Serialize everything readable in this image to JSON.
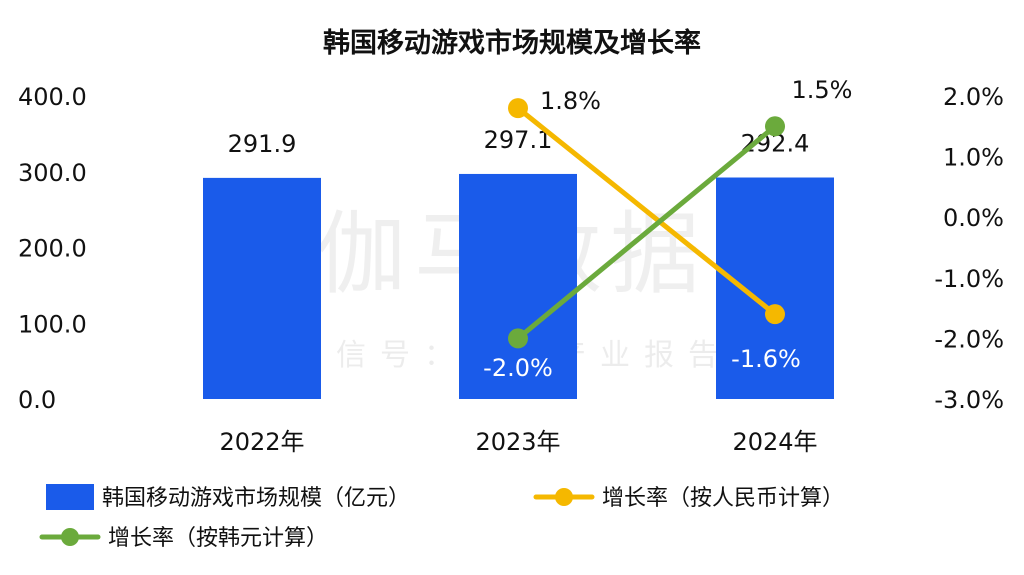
{
  "chart_data": {
    "type": "bar",
    "title": "韩国移动游戏市场规模及增长率",
    "categories": [
      "2022年",
      "2023年",
      "2024年"
    ],
    "series": [
      {
        "name": "韩国移动游戏市场规模（亿元）",
        "type": "bar",
        "axis": "left",
        "values": [
          291.9,
          297.1,
          292.4
        ],
        "labels": [
          "291.9",
          "297.1",
          "292.4"
        ],
        "color": "#1A5BEA"
      },
      {
        "name": "增长率（按人民币计算）",
        "type": "line",
        "axis": "right",
        "values": [
          null,
          1.8,
          -1.6
        ],
        "labels": [
          "",
          "1.8%",
          "-1.6%"
        ],
        "color": "#F5B800"
      },
      {
        "name": "增长率（按韩元计算）",
        "type": "line",
        "axis": "right",
        "values": [
          null,
          -2.0,
          1.5
        ],
        "labels": [
          "",
          "-2.0%",
          "1.5%"
        ],
        "color": "#6BAA3C"
      }
    ],
    "y_left": {
      "ylim": [
        0,
        400
      ],
      "ticks": [
        "0.0",
        "100.0",
        "200.0",
        "300.0",
        "400.0"
      ]
    },
    "y_right": {
      "ylim": [
        -3,
        2
      ],
      "ticks": [
        "-3.0%",
        "-2.0%",
        "-1.0%",
        "0.0%",
        "1.0%",
        "2.0%"
      ]
    },
    "grid": false,
    "legend_position": "bottom"
  },
  "watermark": {
    "main": "伽马数据",
    "sub": "微信号：游戏产业报告"
  }
}
